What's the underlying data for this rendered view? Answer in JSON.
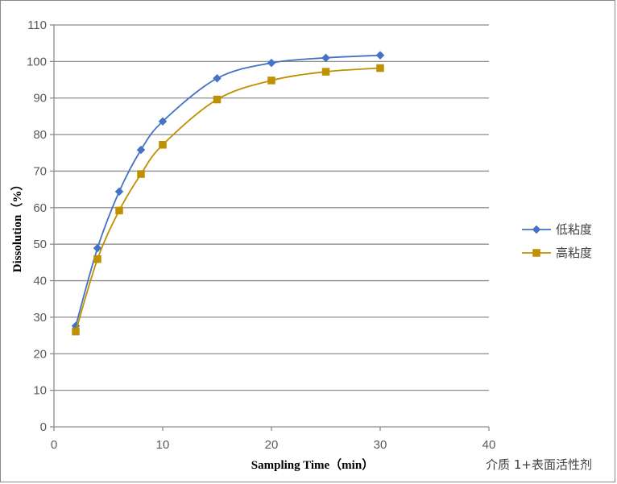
{
  "chart_data": {
    "type": "line",
    "title": "",
    "xlabel": "Sampling Time（min）",
    "ylabel": "Dissolution（%）",
    "xlim": [
      0,
      40
    ],
    "ylim": [
      0,
      110
    ],
    "xticks": [
      0,
      10,
      20,
      30,
      40
    ],
    "yticks": [
      0,
      10,
      20,
      30,
      40,
      50,
      60,
      70,
      80,
      90,
      100,
      110
    ],
    "grid": "horizontal",
    "smooth": true,
    "legend_position": "right",
    "series": [
      {
        "name": "低粘度",
        "marker": "diamond",
        "color": "#4472C4",
        "x": [
          2,
          4,
          6,
          8,
          10,
          15,
          20,
          25,
          30
        ],
        "y": [
          27.6,
          48.9,
          64.4,
          75.8,
          83.6,
          95.4,
          99.6,
          101.0,
          101.7
        ]
      },
      {
        "name": "高粘度",
        "marker": "square",
        "color": "#BF9000",
        "x": [
          2,
          4,
          6,
          8,
          10,
          15,
          20,
          25,
          30
        ],
        "y": [
          26.1,
          45.9,
          59.2,
          69.2,
          77.2,
          89.6,
          94.8,
          97.2,
          98.2
        ]
      }
    ]
  },
  "caption": "介质 1+表面活性剂"
}
